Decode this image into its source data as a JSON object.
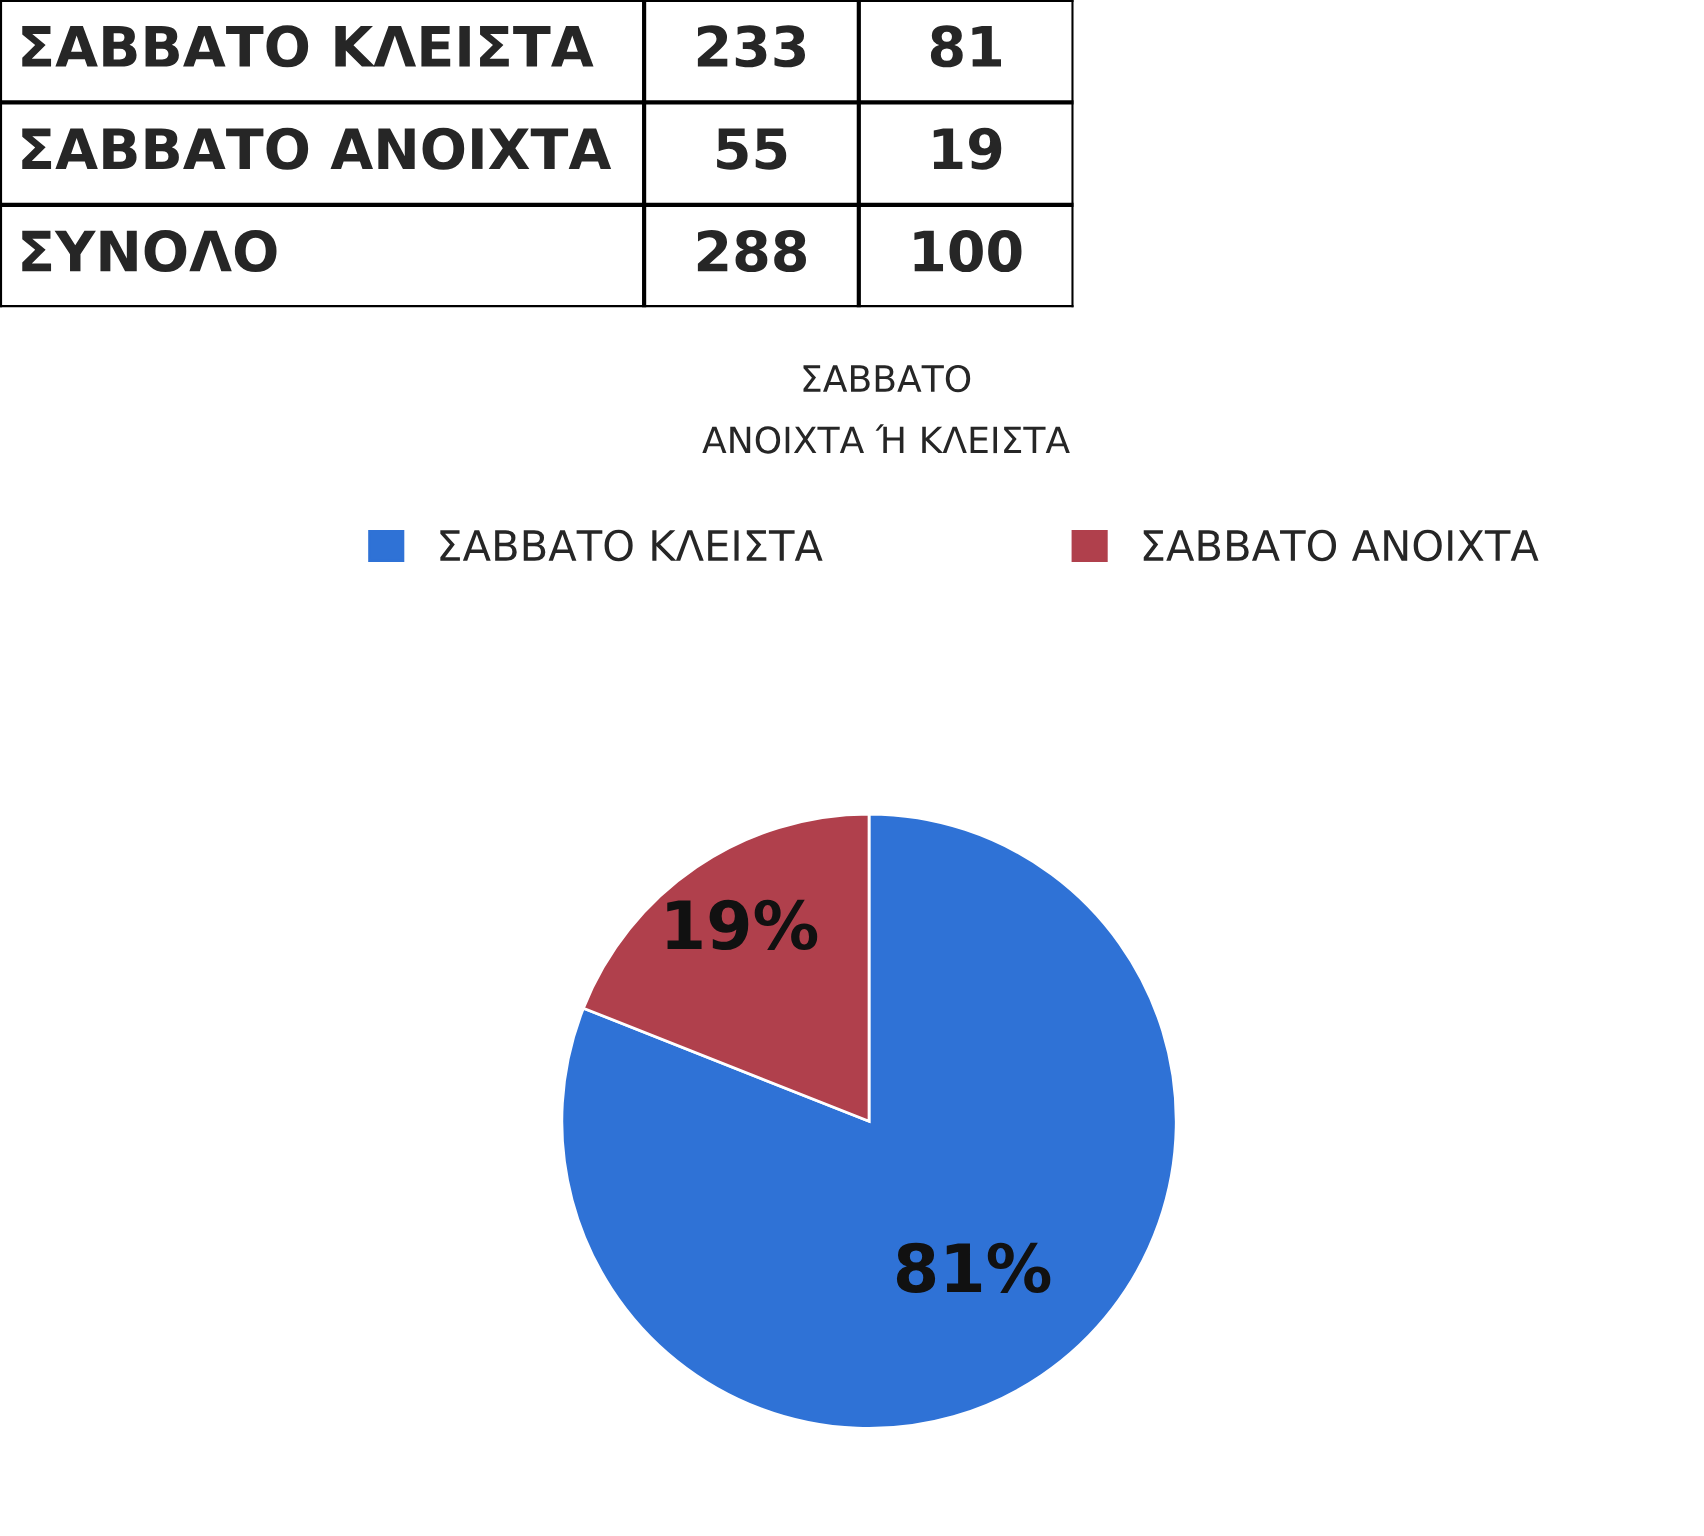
{
  "chart_data": [
    {
      "type": "other",
      "data_labels": true,
      "categories": [
        "ΣΑΒΒΑΤΟ ΚΛΕΙΣΤΑ",
        "ΣΑΒΒΑΤΟ ΑΝΟΙΧΤΑ",
        "ΣΥΝΟΛΟ"
      ],
      "series": [
        {
          "values": [
            233,
            55,
            288
          ]
        },
        {
          "values": [
            81,
            19,
            100
          ]
        }
      ]
    },
    {
      "type": "pie",
      "title": "ΣΑΒΒΑΤΟ",
      "subtitle": "ΑΝΟΙΧΤΑ Ή ΚΛΕΙΣΤΑ",
      "categories": [
        "ΣΑΒΒΑΤΟ ΚΛΕΙΣΤΑ",
        "ΣΑΒΒΑΤΟ ΑΝΟΙΧΤΑ"
      ],
      "values": [
        81,
        19
      ],
      "colors": [
        "#2f72d6",
        "#b0404c"
      ],
      "value_labels": [
        "81%",
        "19%"
      ],
      "legend": "top"
    }
  ]
}
